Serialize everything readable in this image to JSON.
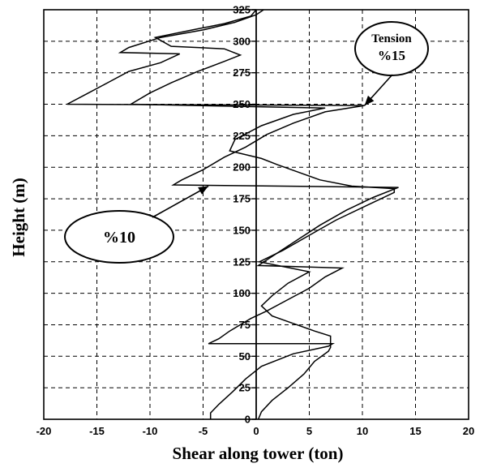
{
  "chart_data": {
    "type": "line",
    "xlabel": "Shear along tower (ton)",
    "ylabel": "Height (m)",
    "xlim": [
      -20,
      20
    ],
    "ylim": [
      0,
      325
    ],
    "x_ticks": [
      -20,
      -15,
      -10,
      -5,
      0,
      5,
      10,
      15,
      20
    ],
    "y_ticks": [
      0,
      25,
      50,
      75,
      100,
      125,
      150,
      175,
      200,
      225,
      250,
      275,
      300,
      325
    ],
    "grid": "dashed",
    "annotations": [
      {
        "lines": [
          "Tension",
          "%15"
        ],
        "points_to": {
          "x": 10.2,
          "y": 249
        }
      },
      {
        "lines": [
          "%10"
        ],
        "points_to": {
          "x": -4.5,
          "y": 185
        }
      }
    ],
    "series": [
      {
        "points": [
          {
            "x": -4.3,
            "y": 0
          },
          {
            "x": -4.3,
            "y": 5
          },
          {
            "x": -3.5,
            "y": 12
          },
          {
            "x": -2.2,
            "y": 22
          },
          {
            "x": -1.0,
            "y": 32
          },
          {
            "x": 0.5,
            "y": 42
          },
          {
            "x": 3.5,
            "y": 52
          },
          {
            "x": 6.8,
            "y": 58
          },
          {
            "x": 7.2,
            "y": 60
          },
          {
            "x": -4.5,
            "y": 60
          },
          {
            "x": -3.5,
            "y": 64
          },
          {
            "x": -2.5,
            "y": 70
          },
          {
            "x": -0.5,
            "y": 80
          },
          {
            "x": 1.0,
            "y": 86
          },
          {
            "x": 3.0,
            "y": 95
          },
          {
            "x": 5.0,
            "y": 104
          },
          {
            "x": 6.5,
            "y": 113
          },
          {
            "x": 8.1,
            "y": 120
          },
          {
            "x": 0.2,
            "y": 122
          },
          {
            "x": 2.0,
            "y": 132
          },
          {
            "x": 4.0,
            "y": 143
          },
          {
            "x": 6.0,
            "y": 154
          },
          {
            "x": 8.5,
            "y": 166
          },
          {
            "x": 11.0,
            "y": 176
          },
          {
            "x": 13.4,
            "y": 184
          },
          {
            "x": -7.8,
            "y": 186
          },
          {
            "x": -7.0,
            "y": 190
          },
          {
            "x": -5.0,
            "y": 198
          },
          {
            "x": -3.0,
            "y": 208
          },
          {
            "x": -1.0,
            "y": 216
          },
          {
            "x": 1.0,
            "y": 226
          },
          {
            "x": 3.5,
            "y": 235
          },
          {
            "x": 6.5,
            "y": 244
          },
          {
            "x": 10.2,
            "y": 249
          },
          {
            "x": -17.8,
            "y": 250
          },
          {
            "x": -16.0,
            "y": 258
          },
          {
            "x": -14.0,
            "y": 267
          },
          {
            "x": -12.0,
            "y": 276
          },
          {
            "x": -9.0,
            "y": 283
          },
          {
            "x": -7.2,
            "y": 290
          },
          {
            "x": -12.8,
            "y": 291
          },
          {
            "x": -12.0,
            "y": 295
          },
          {
            "x": -9.0,
            "y": 303
          },
          {
            "x": -5.0,
            "y": 309
          },
          {
            "x": -2.0,
            "y": 315
          },
          {
            "x": 0.0,
            "y": 321
          },
          {
            "x": 0.7,
            "y": 325
          }
        ]
      },
      {
        "points": [
          {
            "x": 0.2,
            "y": 0
          },
          {
            "x": 0.5,
            "y": 6
          },
          {
            "x": 1.5,
            "y": 15
          },
          {
            "x": 3.0,
            "y": 25
          },
          {
            "x": 4.5,
            "y": 36
          },
          {
            "x": 5.5,
            "y": 46
          },
          {
            "x": 6.8,
            "y": 54
          },
          {
            "x": 7.0,
            "y": 57
          },
          {
            "x": 7.0,
            "y": 66
          },
          {
            "x": 5.5,
            "y": 70
          },
          {
            "x": 3.5,
            "y": 76
          },
          {
            "x": 1.5,
            "y": 82
          },
          {
            "x": 0.5,
            "y": 90
          },
          {
            "x": 1.5,
            "y": 98
          },
          {
            "x": 3.0,
            "y": 108
          },
          {
            "x": 5.0,
            "y": 117
          },
          {
            "x": 0.3,
            "y": 125
          },
          {
            "x": 2.5,
            "y": 134
          },
          {
            "x": 5.0,
            "y": 146
          },
          {
            "x": 7.5,
            "y": 158
          },
          {
            "x": 10.5,
            "y": 170
          },
          {
            "x": 13.0,
            "y": 180
          },
          {
            "x": 13.0,
            "y": 183
          },
          {
            "x": 9.0,
            "y": 185
          },
          {
            "x": 6.0,
            "y": 190
          },
          {
            "x": 4.0,
            "y": 196
          },
          {
            "x": 2.0,
            "y": 202
          },
          {
            "x": 0.5,
            "y": 207
          },
          {
            "x": -2.5,
            "y": 213
          },
          {
            "x": -2.0,
            "y": 222
          },
          {
            "x": 0.5,
            "y": 233
          },
          {
            "x": 3.5,
            "y": 242
          },
          {
            "x": 6.5,
            "y": 247
          },
          {
            "x": -11.8,
            "y": 250
          },
          {
            "x": -10.0,
            "y": 259
          },
          {
            "x": -8.0,
            "y": 267
          },
          {
            "x": -5.5,
            "y": 276
          },
          {
            "x": -3.0,
            "y": 284
          },
          {
            "x": -1.5,
            "y": 289
          },
          {
            "x": -3.0,
            "y": 294
          },
          {
            "x": -8.0,
            "y": 296
          },
          {
            "x": -9.5,
            "y": 303
          },
          {
            "x": -6.0,
            "y": 309
          },
          {
            "x": -3.0,
            "y": 314
          },
          {
            "x": -0.5,
            "y": 320
          },
          {
            "x": 0.0,
            "y": 325
          }
        ]
      }
    ]
  }
}
